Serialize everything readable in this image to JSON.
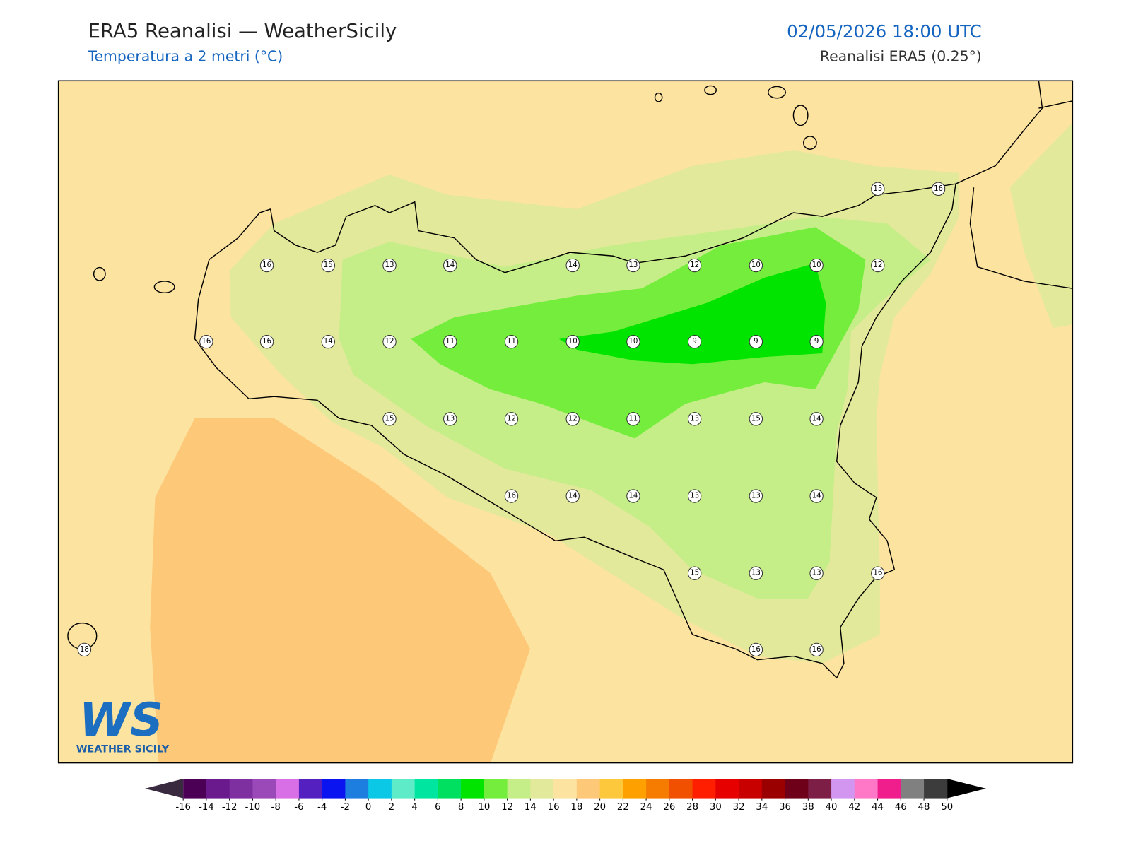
{
  "header": {
    "title": "ERA5 Reanalisi — WeatherSicily",
    "subtitle": "Temperatura a 2 metri (°C)",
    "datetime": "02/05/2026 18:00 UTC",
    "source": "Reanalisi ERA5 (0.25°)"
  },
  "stations": [
    15,
    16,
    16,
    15,
    13,
    14,
    14,
    13,
    12,
    10,
    10,
    12,
    16,
    16,
    14,
    12,
    11,
    11,
    10,
    10,
    9,
    9,
    9,
    15,
    13,
    12,
    12,
    11,
    13,
    15,
    14,
    16,
    14,
    14,
    13,
    13,
    14,
    15,
    13,
    13,
    16,
    18,
    16,
    16
  ],
  "colorbar": {
    "ticks": [
      -16,
      -14,
      -12,
      -10,
      -8,
      -6,
      -4,
      -2,
      0,
      2,
      4,
      6,
      8,
      10,
      12,
      14,
      16,
      18,
      20,
      22,
      24,
      26,
      28,
      30,
      32,
      34,
      36,
      38,
      40,
      42,
      44,
      46,
      48,
      50
    ],
    "colors": [
      "#4b0055",
      "#6a1a8c",
      "#7e2fa0",
      "#9b49b8",
      "#d96fe6",
      "#5520c0",
      "#0a14f0",
      "#1e7ee0",
      "#0ac8e6",
      "#5eebc8",
      "#00e6a0",
      "#00e060",
      "#00e400",
      "#74ed3c",
      "#c5ed88",
      "#e3e99a",
      "#fde3a0",
      "#fdc877",
      "#fdc83c",
      "#fda000",
      "#f57c00",
      "#f05000",
      "#ff1e00",
      "#e60000",
      "#c80000",
      "#9b0000",
      "#6e0019",
      "#7d1e46",
      "#d296f0",
      "#ff78c8",
      "#f01e8c",
      "#808080",
      "#3c3c3c"
    ],
    "under": "#3a2a40",
    "over": "#000000"
  },
  "logo": {
    "mark": "WS",
    "name": "WEATHER SICILY"
  }
}
